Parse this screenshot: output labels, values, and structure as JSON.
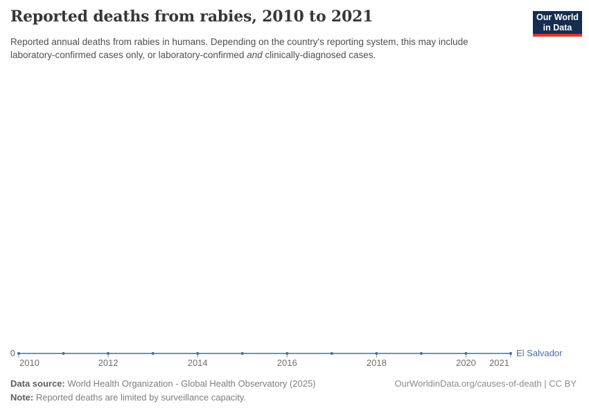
{
  "header": {
    "title": "Reported deaths from rabies, 2010 to 2021",
    "subtitle_p1": "Reported annual deaths from rabies in humans. Depending on the country's reporting system, this may include laboratory-confirmed cases only, or laboratory-confirmed ",
    "subtitle_italic": "and",
    "subtitle_p2": " clinically-diagnosed cases.",
    "logo_line1": "Our World",
    "logo_line2": "in Data",
    "logo_bg_color": "#152D4F",
    "logo_accent_color": "#E2372B"
  },
  "chart_data": {
    "type": "line",
    "title": "Reported deaths from rabies, 2010 to 2021",
    "x": [
      2010,
      2011,
      2012,
      2013,
      2014,
      2015,
      2016,
      2017,
      2018,
      2019,
      2020,
      2021
    ],
    "series": [
      {
        "name": "El Salvador",
        "color": "#4C6A9C",
        "values": [
          0,
          0,
          0,
          0,
          0,
          0,
          0,
          0,
          0,
          0,
          0,
          0
        ]
      }
    ],
    "x_tick_labels": [
      "2010",
      "2012",
      "2014",
      "2016",
      "2018",
      "2020",
      "2021"
    ],
    "y_axis_zero_label": "0",
    "xlim": [
      2010,
      2021
    ],
    "ylim": [
      0,
      0
    ],
    "grid": false,
    "markers": true,
    "legend_position": "inline-right-of-line"
  },
  "footer": {
    "datasource_label": "Data source:",
    "datasource_text": " World Health Organization - Global Health Observatory (2025)",
    "rights": "OurWorldinData.org/causes-of-death | CC BY",
    "note_label": "Note:",
    "note_text": " Reported deaths are limited by surveillance capacity."
  }
}
